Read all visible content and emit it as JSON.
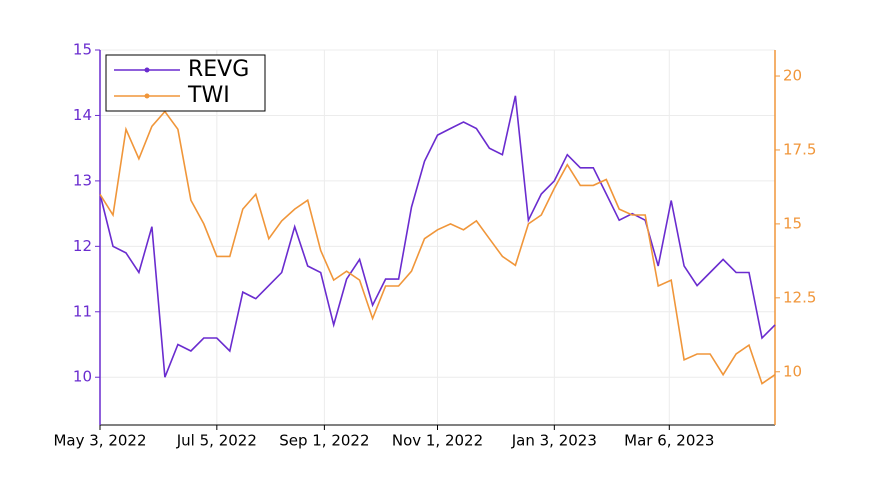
{
  "chart_data": {
    "type": "line",
    "x": [
      "2022-05-03",
      "2022-05-10",
      "2022-05-17",
      "2022-05-24",
      "2022-05-31",
      "2022-06-07",
      "2022-06-14",
      "2022-06-21",
      "2022-06-28",
      "2022-07-05",
      "2022-07-12",
      "2022-07-19",
      "2022-07-26",
      "2022-08-02",
      "2022-08-09",
      "2022-08-16",
      "2022-08-23",
      "2022-08-30",
      "2022-09-06",
      "2022-09-13",
      "2022-09-20",
      "2022-09-27",
      "2022-10-04",
      "2022-10-11",
      "2022-10-18",
      "2022-10-25",
      "2022-11-01",
      "2022-11-08",
      "2022-11-15",
      "2022-11-22",
      "2022-11-29",
      "2022-12-06",
      "2022-12-13",
      "2022-12-20",
      "2022-12-27",
      "2023-01-03",
      "2023-01-10",
      "2023-01-17",
      "2023-01-24",
      "2023-01-31",
      "2023-02-07",
      "2023-02-14",
      "2023-02-21",
      "2023-02-28",
      "2023-03-07",
      "2023-03-14",
      "2023-03-21",
      "2023-03-28",
      "2023-04-04",
      "2023-04-11",
      "2023-04-18",
      "2023-04-25",
      "2023-05-02"
    ],
    "series": [
      {
        "name": "REVG",
        "color": "#6a2ccf",
        "axis": "y",
        "values": [
          12.8,
          12.0,
          11.9,
          11.6,
          12.3,
          10.0,
          10.5,
          10.4,
          10.6,
          10.6,
          10.4,
          11.3,
          11.2,
          11.4,
          11.6,
          12.3,
          11.7,
          11.6,
          10.8,
          11.5,
          11.8,
          11.1,
          11.5,
          11.5,
          12.6,
          13.3,
          13.7,
          13.8,
          13.9,
          13.8,
          13.5,
          13.4,
          14.3,
          12.4,
          12.8,
          13.0,
          13.4,
          13.2,
          13.2,
          12.8,
          12.4,
          12.5,
          12.4,
          11.7,
          12.7,
          11.7,
          11.4,
          11.6,
          11.8,
          11.6,
          11.6,
          10.6,
          10.8
        ]
      },
      {
        "name": "TWI",
        "color": "#f0963a",
        "axis": "y2",
        "values": [
          16.0,
          15.3,
          18.2,
          17.2,
          18.3,
          18.8,
          18.2,
          15.8,
          15.0,
          13.9,
          13.9,
          15.5,
          16.0,
          14.5,
          15.1,
          15.5,
          15.8,
          14.1,
          13.1,
          13.4,
          13.1,
          11.8,
          12.9,
          12.9,
          13.4,
          14.5,
          14.8,
          15.0,
          14.8,
          15.1,
          14.5,
          13.9,
          13.6,
          15.0,
          15.3,
          16.2,
          17.0,
          16.3,
          16.3,
          16.5,
          15.5,
          15.3,
          15.3,
          12.9,
          13.1,
          10.4,
          10.6,
          10.6,
          9.9,
          10.6,
          10.9,
          9.6,
          9.9
        ]
      }
    ],
    "xlim": [
      "2022-05-03",
      "2023-05-02"
    ],
    "xticks": [
      {
        "value": "2022-05-03",
        "label": "May 3, 2022"
      },
      {
        "value": "2022-07-05",
        "label": "Jul 5, 2022"
      },
      {
        "value": "2022-09-01",
        "label": "Sep 1, 2022"
      },
      {
        "value": "2022-11-01",
        "label": "Nov 1, 2022"
      },
      {
        "value": "2023-01-03",
        "label": "Jan 3, 2023"
      },
      {
        "value": "2023-03-06",
        "label": "Mar 6, 2023"
      }
    ],
    "ylim": [
      9.27,
      15
    ],
    "yticks": [
      10,
      11,
      12,
      13,
      14,
      15
    ],
    "y2lim": [
      8.2,
      20.88
    ],
    "y2ticks": [
      10,
      12.5,
      15,
      17.5,
      20
    ],
    "grid": true,
    "legend": "upper left"
  }
}
